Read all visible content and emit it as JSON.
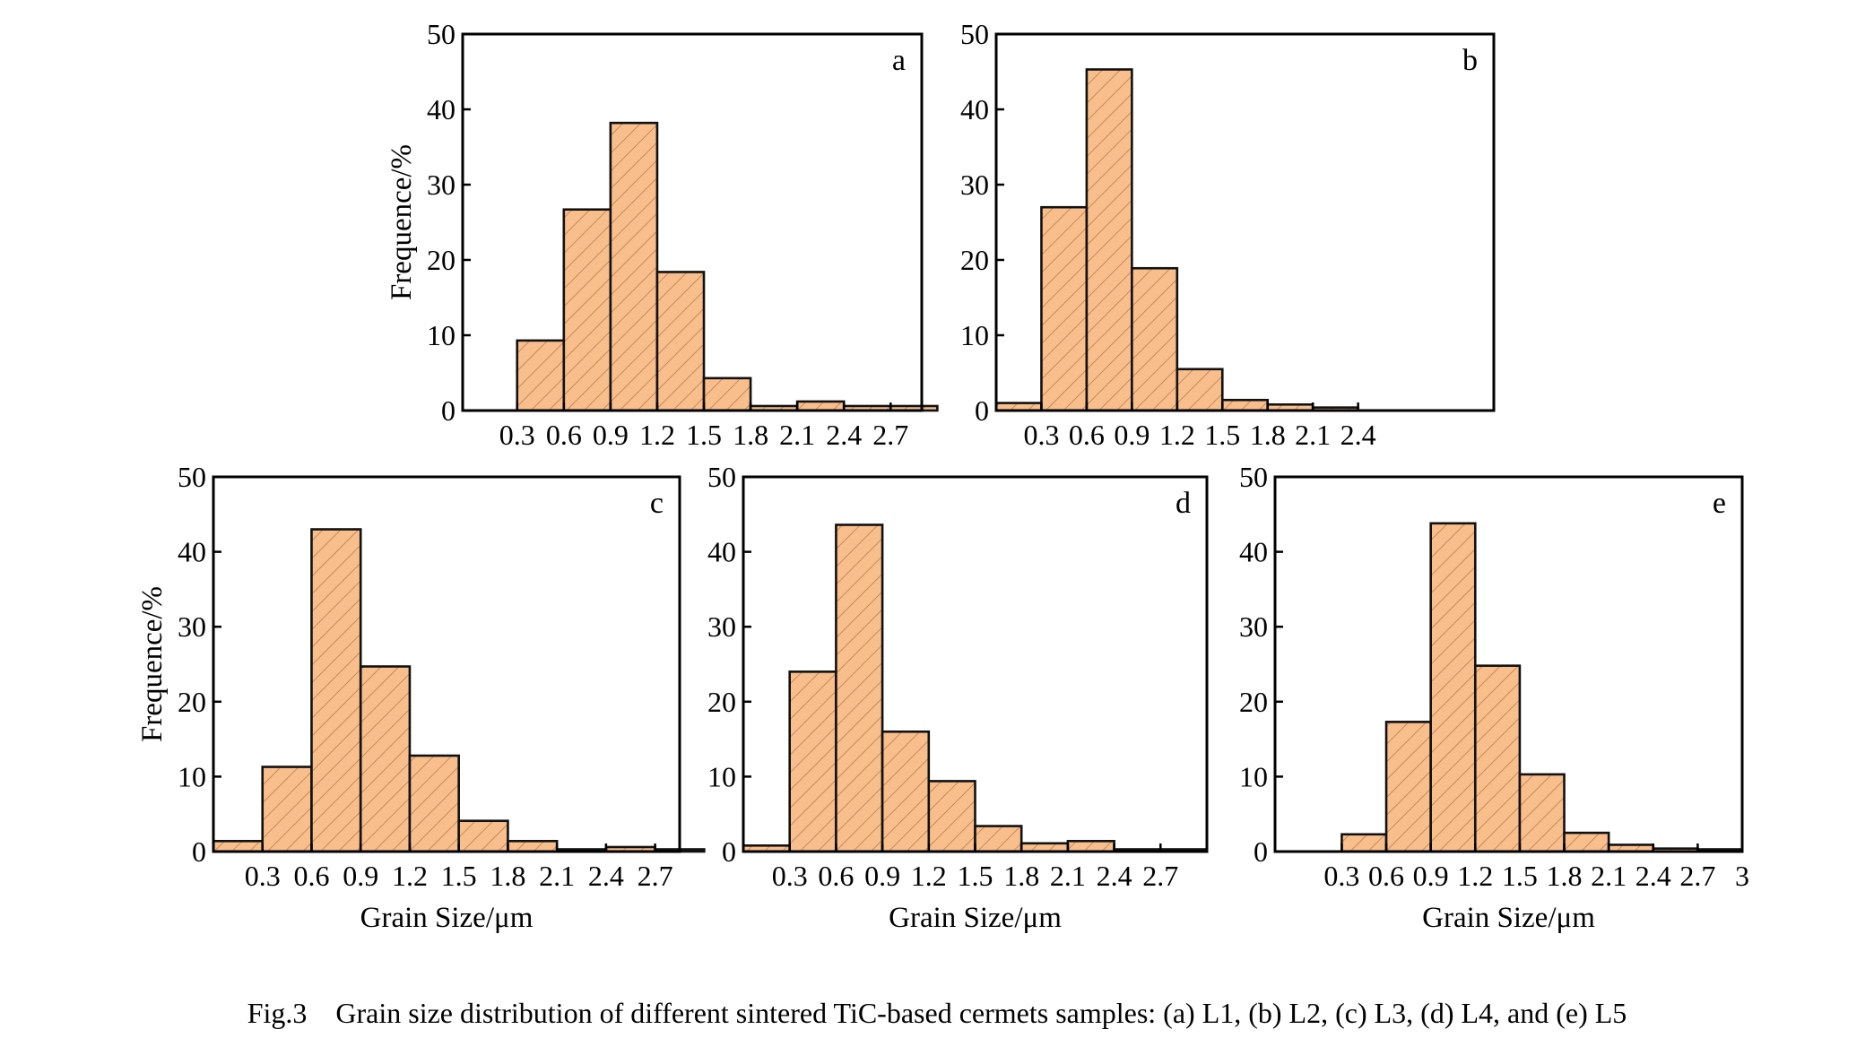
{
  "caption": "Fig.3    Grain size distribution of different sintered TiC-based cermets samples: (a) L1, (b) L2, (c) L3, (d) L4, and (e) L5",
  "colors": {
    "bar_fill": "#f8be8c",
    "hatch": "#c88a5c",
    "edge": "#111111"
  },
  "chart_data": [
    {
      "type": "bar",
      "panel_label": "a",
      "xlabel": "",
      "ylabel": "Frequence/%",
      "ylim": [
        0,
        50
      ],
      "yticks": [
        0,
        10,
        20,
        30,
        40,
        50
      ],
      "xlim": [
        -0.05,
        2.9
      ],
      "xticks": [
        0.3,
        0.6,
        0.9,
        1.2,
        1.5,
        1.8,
        2.1,
        2.4,
        2.7
      ],
      "bin_width": 0.3,
      "bin_starts": [
        0.3,
        0.6,
        0.9,
        1.2,
        1.5,
        1.8,
        2.1,
        2.4,
        2.7
      ],
      "values": [
        9.3,
        26.7,
        38.2,
        18.4,
        4.3,
        0.6,
        1.2,
        0.6,
        0.6
      ]
    },
    {
      "type": "bar",
      "panel_label": "b",
      "xlabel": "",
      "ylabel": "",
      "ylim": [
        0,
        50
      ],
      "yticks": [
        0,
        10,
        20,
        30,
        40,
        50
      ],
      "xlim": [
        0,
        3.3
      ],
      "xticks": [
        0.3,
        0.6,
        0.9,
        1.2,
        1.5,
        1.8,
        2.1,
        2.4
      ],
      "bin_width": 0.3,
      "bin_starts": [
        0.0,
        0.3,
        0.6,
        0.9,
        1.2,
        1.5,
        1.8,
        2.1
      ],
      "values": [
        1.0,
        27.0,
        45.3,
        18.9,
        5.5,
        1.4,
        0.8,
        0.4
      ]
    },
    {
      "type": "bar",
      "panel_label": "c",
      "xlabel": "Grain Size/μm",
      "ylabel": "Frequence/%",
      "ylim": [
        0,
        50
      ],
      "yticks": [
        0,
        10,
        20,
        30,
        40,
        50
      ],
      "xlim": [
        0,
        2.85
      ],
      "xticks": [
        0.3,
        0.6,
        0.9,
        1.2,
        1.5,
        1.8,
        2.1,
        2.4,
        2.7
      ],
      "bin_width": 0.3,
      "bin_starts": [
        0.0,
        0.3,
        0.6,
        0.9,
        1.2,
        1.5,
        1.8,
        2.1,
        2.4,
        2.7
      ],
      "values": [
        1.4,
        11.3,
        43.0,
        24.7,
        12.8,
        4.1,
        1.4,
        0.3,
        0.6,
        0.3
      ]
    },
    {
      "type": "bar",
      "panel_label": "d",
      "xlabel": "Grain Size/μm",
      "ylabel": "",
      "ylim": [
        0,
        50
      ],
      "yticks": [
        0,
        10,
        20,
        30,
        40,
        50
      ],
      "xlim": [
        0,
        3.0
      ],
      "xticks": [
        0.3,
        0.6,
        0.9,
        1.2,
        1.5,
        1.8,
        2.1,
        2.4,
        2.7
      ],
      "bin_width": 0.3,
      "bin_starts": [
        0.0,
        0.3,
        0.6,
        0.9,
        1.2,
        1.5,
        1.8,
        2.1,
        2.4,
        2.7
      ],
      "values": [
        0.8,
        24.0,
        43.6,
        16.0,
        9.4,
        3.4,
        1.1,
        1.4,
        0.3,
        0.3
      ]
    },
    {
      "type": "bar",
      "panel_label": "e",
      "xlabel": "Grain Size/μm",
      "ylabel": "",
      "ylim": [
        0,
        50
      ],
      "yticks": [
        0,
        10,
        20,
        30,
        40,
        50
      ],
      "xlim": [
        -0.15,
        3.0
      ],
      "xticks": [
        0.3,
        0.6,
        0.9,
        1.2,
        1.5,
        1.8,
        2.1,
        2.4,
        2.7,
        3.0
      ],
      "bin_width": 0.3,
      "bin_starts": [
        0.3,
        0.6,
        0.9,
        1.2,
        1.5,
        1.8,
        2.1,
        2.4,
        2.7
      ],
      "values": [
        2.3,
        17.3,
        43.8,
        24.8,
        10.3,
        2.5,
        0.9,
        0.4,
        0.3
      ]
    }
  ]
}
